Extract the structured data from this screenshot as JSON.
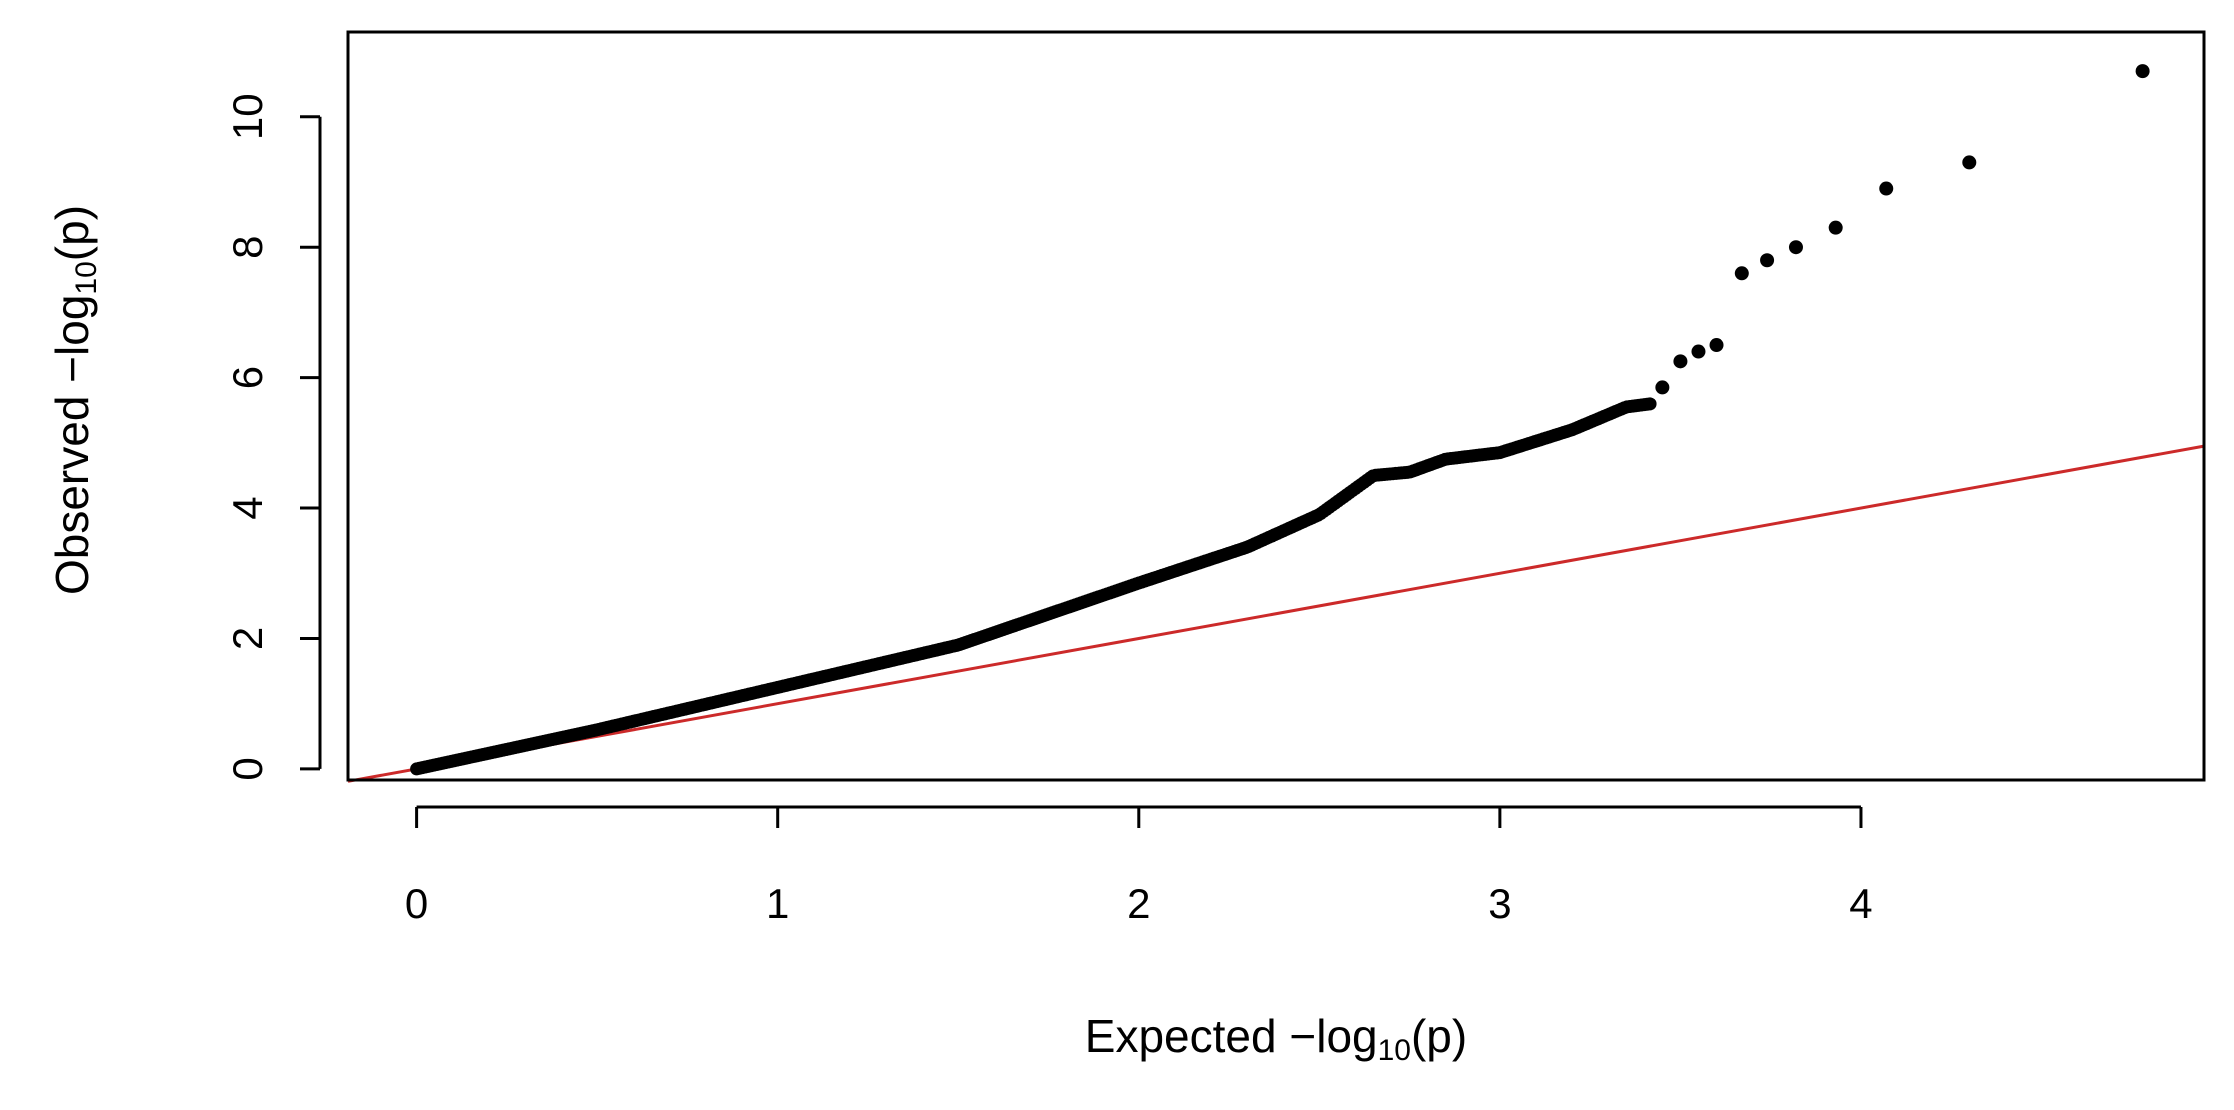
{
  "chart_data": {
    "type": "scatter",
    "title": "",
    "xlabel": {
      "prefix": "Expected  −log",
      "sub": "10",
      "suffix": "(p)"
    },
    "ylabel": {
      "prefix": "Observed  −log",
      "sub": "10",
      "suffix": "(p)"
    },
    "xlim": [
      -0.19,
      4.95
    ],
    "ylim": [
      -0.17,
      11.3
    ],
    "xticks": [
      0,
      1,
      2,
      3,
      4
    ],
    "yticks": [
      0,
      2,
      4,
      6,
      8,
      10
    ],
    "grid": false,
    "legend": "none",
    "point_color": "#000000",
    "reference_line": {
      "slope": 1,
      "intercept": 0,
      "color": "#cc2a2a"
    },
    "curve_knots": [
      [
        0,
        0
      ],
      [
        0.5,
        0.6
      ],
      [
        1,
        1.25
      ],
      [
        1.5,
        1.9
      ],
      [
        2,
        2.85
      ],
      [
        2.3,
        3.4
      ],
      [
        2.5,
        3.9
      ],
      [
        2.65,
        4.5
      ],
      [
        2.75,
        4.55
      ],
      [
        2.85,
        4.75
      ],
      [
        3.0,
        4.85
      ],
      [
        3.2,
        5.2
      ],
      [
        3.35,
        5.55
      ],
      [
        3.42,
        5.6
      ]
    ],
    "points": [
      [
        3.45,
        5.85
      ],
      [
        3.5,
        6.25
      ],
      [
        3.55,
        6.4
      ],
      [
        3.6,
        6.5
      ],
      [
        3.67,
        7.6
      ],
      [
        3.74,
        7.8
      ],
      [
        3.82,
        8.0
      ],
      [
        3.93,
        8.3
      ],
      [
        4.07,
        8.9
      ],
      [
        4.3,
        9.3
      ],
      [
        4.78,
        10.7
      ]
    ]
  }
}
